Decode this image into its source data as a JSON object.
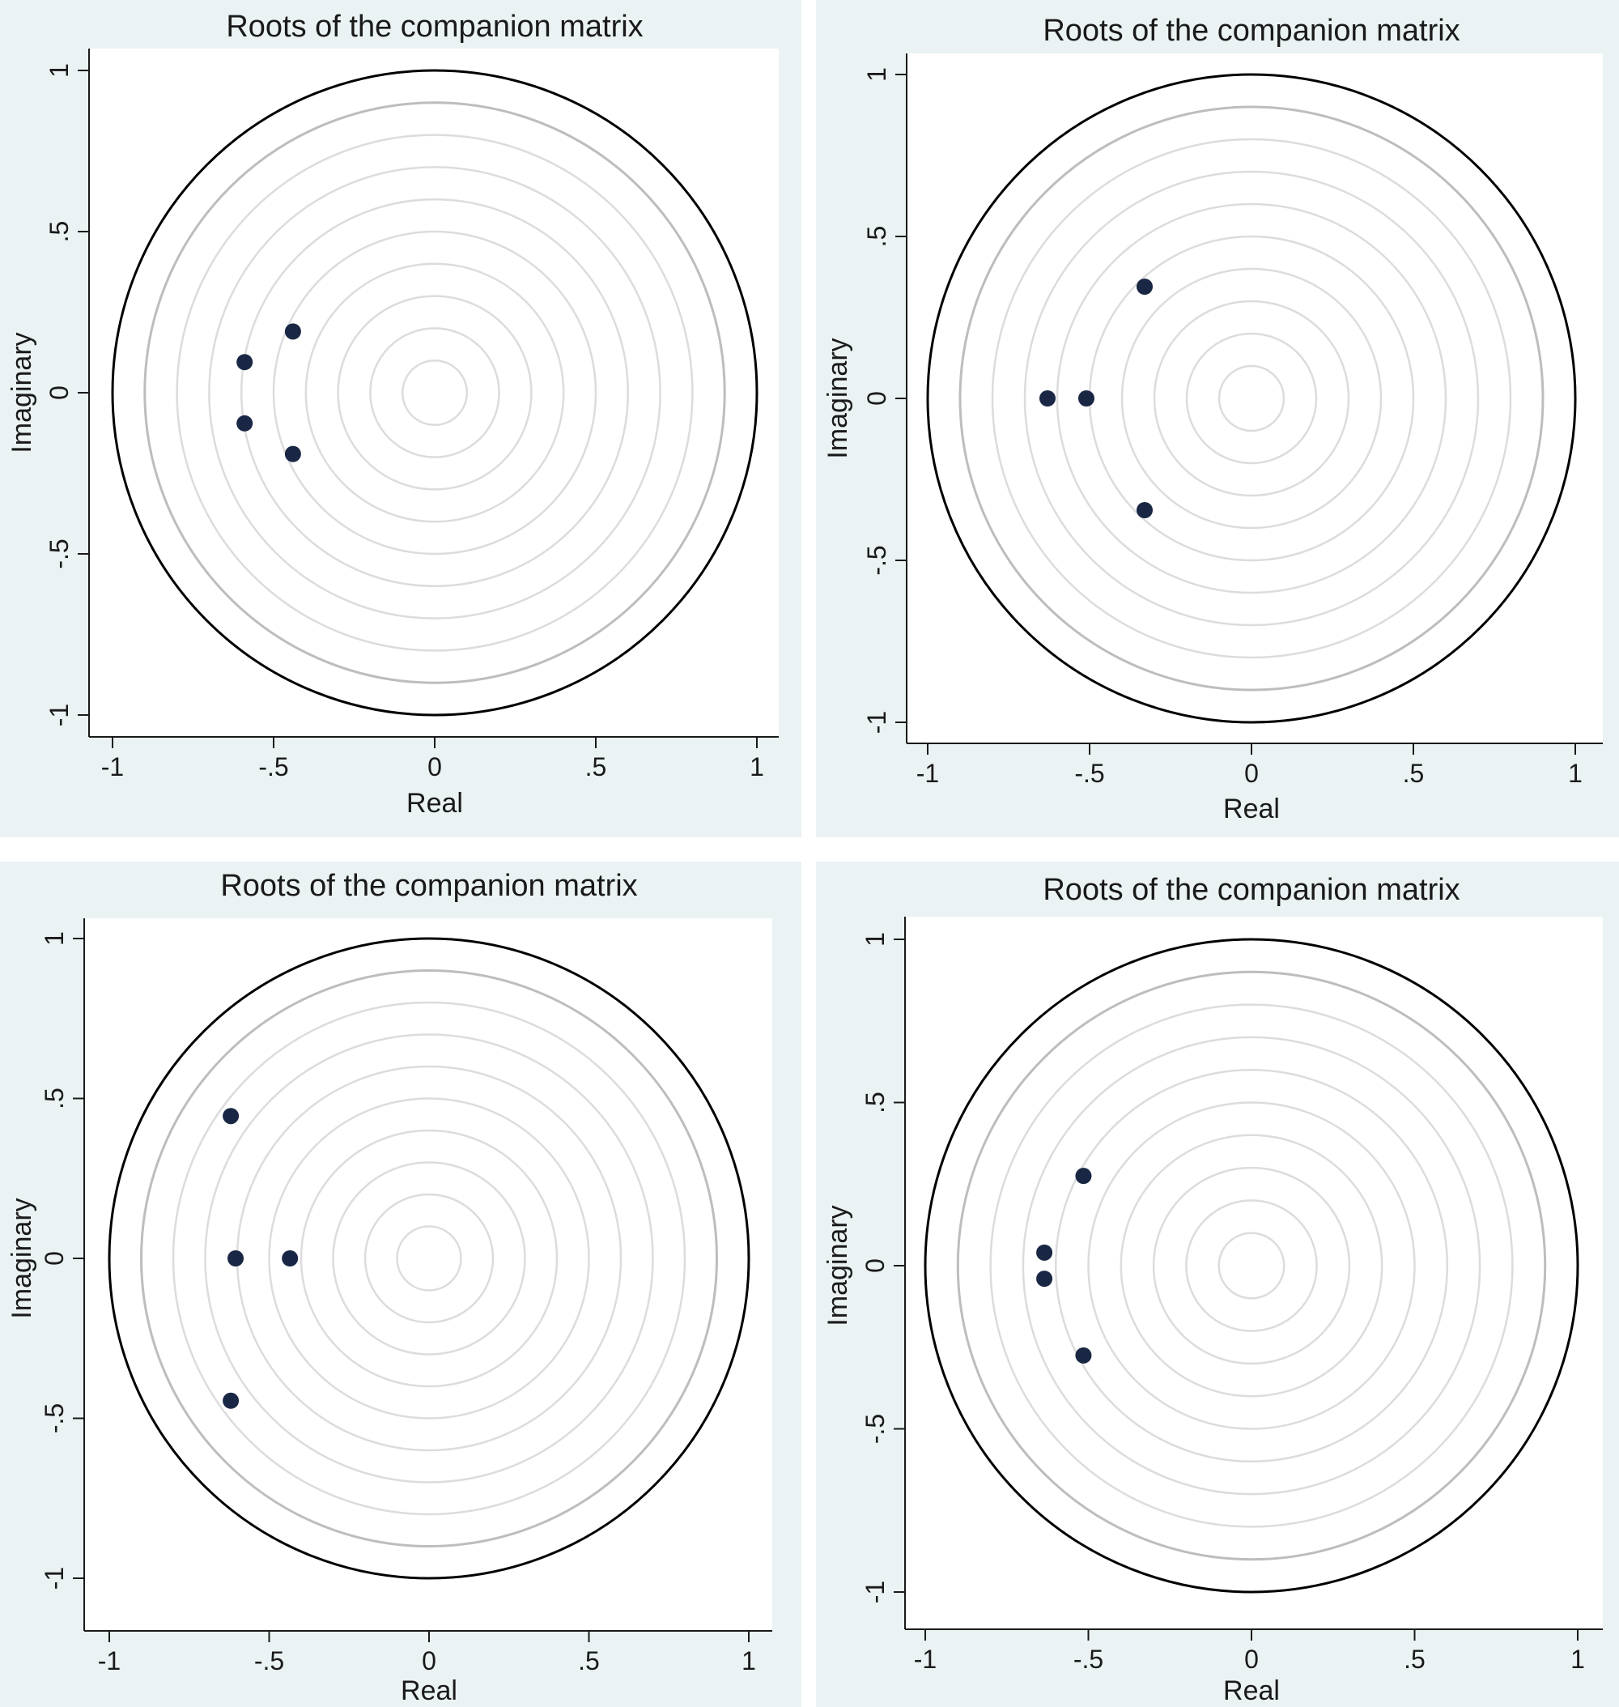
{
  "chart_data": [
    {
      "type": "scatter",
      "title": "Roots of the companion matrix",
      "xlabel": "Real",
      "ylabel": "Imaginary",
      "xlim": [
        -1,
        1
      ],
      "ylim": [
        -1,
        1
      ],
      "x_ticks": [
        "-1",
        "-.5",
        "0",
        ".5",
        "1"
      ],
      "y_ticks": [
        "-1",
        "-.5",
        "0",
        ".5",
        "1"
      ],
      "unit_circle": true,
      "grid": "concentric circles",
      "points": [
        {
          "x": -0.44,
          "y": 0.19
        },
        {
          "x": -0.59,
          "y": 0.095
        },
        {
          "x": -0.59,
          "y": -0.095
        },
        {
          "x": -0.44,
          "y": -0.19
        }
      ]
    },
    {
      "type": "scatter",
      "title": "Roots of the companion matrix",
      "xlabel": "Real",
      "ylabel": "Imaginary",
      "xlim": [
        -1,
        1
      ],
      "ylim": [
        -1,
        1
      ],
      "x_ticks": [
        "-1",
        "-.5",
        "0",
        ".5",
        "1"
      ],
      "y_ticks": [
        "-1",
        "-.5",
        "0",
        ".5",
        "1"
      ],
      "unit_circle": true,
      "grid": "concentric circles",
      "points": [
        {
          "x": -0.33,
          "y": 0.345
        },
        {
          "x": -0.63,
          "y": 0.0
        },
        {
          "x": -0.51,
          "y": 0.0
        },
        {
          "x": -0.33,
          "y": -0.345
        }
      ]
    },
    {
      "type": "scatter",
      "title": "Roots of the companion matrix",
      "xlabel": "Real",
      "ylabel": "Imaginary",
      "xlim": [
        -1,
        1
      ],
      "ylim": [
        -1,
        1
      ],
      "x_ticks": [
        "-1",
        "-.5",
        "0",
        ".5",
        "1"
      ],
      "y_ticks": [
        "-1",
        "-.5",
        "0",
        ".5",
        "1"
      ],
      "unit_circle": true,
      "grid": "concentric circles",
      "points": [
        {
          "x": -0.62,
          "y": 0.445
        },
        {
          "x": -0.605,
          "y": 0.0
        },
        {
          "x": -0.435,
          "y": 0.0
        },
        {
          "x": -0.62,
          "y": -0.445
        }
      ]
    },
    {
      "type": "scatter",
      "title": "Roots of the companion matrix",
      "xlabel": "Real",
      "ylabel": "Imaginary",
      "xlim": [
        -1,
        1
      ],
      "ylim": [
        -1,
        1
      ],
      "x_ticks": [
        "-1",
        "-.5",
        "0",
        ".5",
        "1"
      ],
      "y_ticks": [
        "-1",
        "-.5",
        "0",
        ".5",
        "1"
      ],
      "unit_circle": true,
      "grid": "concentric circles",
      "points": [
        {
          "x": -0.515,
          "y": 0.275
        },
        {
          "x": -0.635,
          "y": 0.04
        },
        {
          "x": -0.635,
          "y": -0.04
        },
        {
          "x": -0.515,
          "y": -0.275
        }
      ]
    }
  ],
  "colors": {
    "panel_background": "#eaf2f3",
    "plot_background": "#ffffff",
    "unit_circle": "#000000",
    "inner_circle": "#bdbdbd",
    "grid_circle": "#dcdcdc",
    "marker": "#1a2744"
  }
}
